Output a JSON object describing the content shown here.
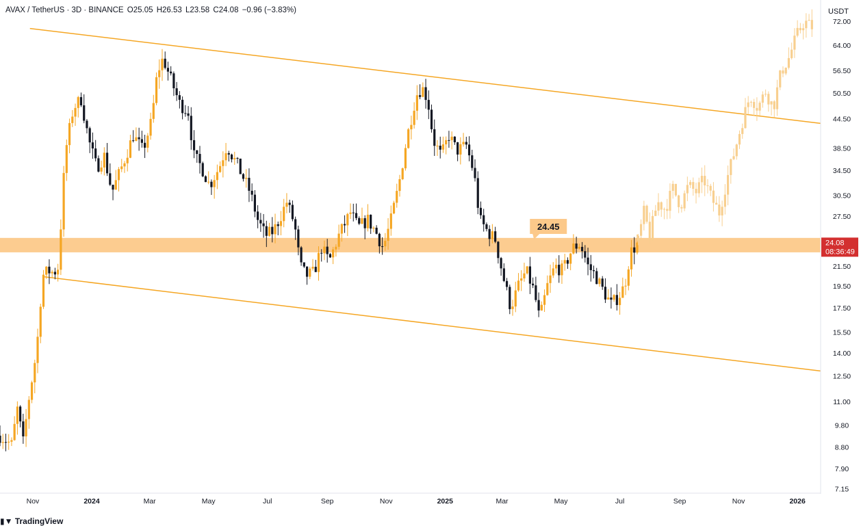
{
  "header": {
    "symbol": "AVAX / TetherUS · 3D · BINANCE",
    "open": "O25.05",
    "high": "H26.53",
    "low": "L23.58",
    "close": "C24.08",
    "change": "−0.96 (−3.83%)"
  },
  "price_axis_unit": "USDT",
  "footer": {
    "brand": "TradingView",
    "logo_icon": "tradingview-logo-icon"
  },
  "colors": {
    "up": "#f5a623",
    "down": "#131722",
    "projection": "#f8cf8f",
    "channel": "#f5a623",
    "zone": "#fcc98a",
    "badge": "#d32f2f"
  },
  "chart_data": {
    "type": "candlestick",
    "title": "",
    "xlabel": "",
    "ylabel": "",
    "y_scale": "log",
    "ylim": [
      7.0,
      80.0
    ],
    "xlim": [
      "2023-09-28",
      "2026-01-25"
    ],
    "y_ticks": [
      "72.00",
      "64.00",
      "56.50",
      "50.50",
      "44.50",
      "38.50",
      "34.50",
      "30.50",
      "27.50",
      "21.50",
      "19.50",
      "17.50",
      "15.50",
      "14.00",
      "12.50",
      "11.00",
      "9.80",
      "8.80",
      "7.90",
      "7.15"
    ],
    "x_ticks": [
      {
        "label": "Nov",
        "date": "2023-11-01",
        "year": false
      },
      {
        "label": "2024",
        "date": "2024-01-01",
        "year": true
      },
      {
        "label": "Mar",
        "date": "2024-03-01",
        "year": false
      },
      {
        "label": "May",
        "date": "2024-05-01",
        "year": false
      },
      {
        "label": "Jul",
        "date": "2024-07-01",
        "year": false
      },
      {
        "label": "Sep",
        "date": "2024-09-01",
        "year": false
      },
      {
        "label": "Nov",
        "date": "2024-11-01",
        "year": false
      },
      {
        "label": "2025",
        "date": "2025-01-01",
        "year": true
      },
      {
        "label": "Mar",
        "date": "2025-03-01",
        "year": false
      },
      {
        "label": "May",
        "date": "2025-05-01",
        "year": false
      },
      {
        "label": "Jul",
        "date": "2025-07-01",
        "year": false
      },
      {
        "label": "Sep",
        "date": "2025-09-01",
        "year": false
      },
      {
        "label": "Nov",
        "date": "2025-11-01",
        "year": false
      },
      {
        "label": "2026",
        "date": "2026-01-01",
        "year": true
      }
    ],
    "price_path": [
      [
        "2023-09-28",
        9.3
      ],
      [
        "2023-10-10",
        8.9
      ],
      [
        "2023-10-16",
        10.6
      ],
      [
        "2023-10-22",
        9.0
      ],
      [
        "2023-10-28",
        11.2
      ],
      [
        "2023-11-05",
        14.2
      ],
      [
        "2023-11-11",
        20.5
      ],
      [
        "2023-11-17",
        21.0
      ],
      [
        "2023-11-23",
        20.8
      ],
      [
        "2023-11-28",
        21.5
      ],
      [
        "2023-12-01",
        29.0
      ],
      [
        "2023-12-05",
        38.0
      ],
      [
        "2023-12-13",
        47.0
      ],
      [
        "2023-12-21",
        49.0
      ],
      [
        "2023-12-29",
        40.0
      ],
      [
        "2024-01-06",
        35.0
      ],
      [
        "2024-01-14",
        37.0
      ],
      [
        "2024-01-22",
        31.0
      ],
      [
        "2024-02-01",
        35.0
      ],
      [
        "2024-02-13",
        41.0
      ],
      [
        "2024-02-23",
        38.0
      ],
      [
        "2024-03-03",
        44.0
      ],
      [
        "2024-03-09",
        56.0
      ],
      [
        "2024-03-15",
        60.0
      ],
      [
        "2024-03-23",
        54.0
      ],
      [
        "2024-04-01",
        48.0
      ],
      [
        "2024-04-10",
        46.0
      ],
      [
        "2024-04-16",
        37.0
      ],
      [
        "2024-04-24",
        35.0
      ],
      [
        "2024-05-02",
        32.0
      ],
      [
        "2024-05-12",
        35.0
      ],
      [
        "2024-05-20",
        39.0
      ],
      [
        "2024-06-01",
        35.0
      ],
      [
        "2024-06-13",
        31.0
      ],
      [
        "2024-06-21",
        27.0
      ],
      [
        "2024-06-29",
        25.0
      ],
      [
        "2024-07-07",
        25.5
      ],
      [
        "2024-07-13",
        27.0
      ],
      [
        "2024-07-21",
        29.5
      ],
      [
        "2024-07-29",
        26.5
      ],
      [
        "2024-08-04",
        21.5
      ],
      [
        "2024-08-10",
        20.5
      ],
      [
        "2024-08-18",
        20.8
      ],
      [
        "2024-08-26",
        23.5
      ],
      [
        "2024-09-03",
        22.0
      ],
      [
        "2024-09-13",
        25.0
      ],
      [
        "2024-09-25",
        28.0
      ],
      [
        "2024-10-03",
        26.0
      ],
      [
        "2024-10-13",
        27.0
      ],
      [
        "2024-10-21",
        25.5
      ],
      [
        "2024-10-29",
        23.5
      ],
      [
        "2024-11-06",
        27.0
      ],
      [
        "2024-11-14",
        32.0
      ],
      [
        "2024-11-22",
        40.0
      ],
      [
        "2024-12-02",
        50.0
      ],
      [
        "2024-12-08",
        52.0
      ],
      [
        "2024-12-14",
        49.0
      ],
      [
        "2024-12-20",
        40.0
      ],
      [
        "2024-12-28",
        37.0
      ],
      [
        "2025-01-05",
        41.0
      ],
      [
        "2025-01-13",
        38.0
      ],
      [
        "2025-01-23",
        39.0
      ],
      [
        "2025-01-31",
        34.0
      ],
      [
        "2025-02-06",
        27.0
      ],
      [
        "2025-02-14",
        25.5
      ],
      [
        "2025-02-22",
        24.5
      ],
      [
        "2025-03-02",
        20.5
      ],
      [
        "2025-03-10",
        17.5
      ],
      [
        "2025-03-18",
        19.5
      ],
      [
        "2025-03-26",
        21.0
      ],
      [
        "2025-04-03",
        19.0
      ],
      [
        "2025-04-09",
        16.5
      ],
      [
        "2025-04-17",
        19.5
      ],
      [
        "2025-04-25",
        21.5
      ],
      [
        "2025-05-03",
        21.0
      ],
      [
        "2025-05-13",
        23.5
      ],
      [
        "2025-05-21",
        24.0
      ],
      [
        "2025-05-29",
        21.5
      ],
      [
        "2025-06-06",
        20.5
      ],
      [
        "2025-06-14",
        19.0
      ],
      [
        "2025-06-22",
        17.8
      ],
      [
        "2025-06-30",
        18.5
      ],
      [
        "2025-07-06",
        19.5
      ],
      [
        "2025-07-12",
        23.0
      ],
      [
        "2025-07-20",
        24.08
      ]
    ],
    "projection_path": [
      [
        "2025-07-20",
        24.3
      ],
      [
        "2025-07-26",
        28.0
      ],
      [
        "2025-08-01",
        25.0
      ],
      [
        "2025-08-09",
        29.5
      ],
      [
        "2025-08-17",
        28.5
      ],
      [
        "2025-08-25",
        31.5
      ],
      [
        "2025-09-02",
        29.0
      ],
      [
        "2025-09-10",
        32.0
      ],
      [
        "2025-09-18",
        31.0
      ],
      [
        "2025-09-26",
        33.0
      ],
      [
        "2025-10-04",
        30.0
      ],
      [
        "2025-10-12",
        28.0
      ],
      [
        "2025-10-20",
        33.0
      ],
      [
        "2025-10-28",
        38.0
      ],
      [
        "2025-11-05",
        44.0
      ],
      [
        "2025-11-13",
        50.0
      ],
      [
        "2025-11-21",
        47.0
      ],
      [
        "2025-11-29",
        51.0
      ],
      [
        "2025-12-07",
        47.0
      ],
      [
        "2025-12-15",
        56.0
      ],
      [
        "2025-12-23",
        60.0
      ],
      [
        "2025-12-31",
        67.0
      ],
      [
        "2026-01-08",
        72.0
      ],
      [
        "2026-01-16",
        70.0
      ]
    ],
    "channel_upper": {
      "start": [
        "2023-10-29",
        69.5
      ],
      "end": [
        "2026-01-25",
        43.5
      ]
    },
    "channel_lower": {
      "start": [
        "2023-11-11",
        20.4
      ],
      "end": [
        "2026-01-25",
        12.8
      ]
    },
    "support_zone": [
      23.0,
      24.7
    ],
    "annotation": {
      "text": "24.45",
      "date": "2025-04-01",
      "value": 24.45
    },
    "last_price": {
      "value": "24.08",
      "countdown": "08:36:49"
    }
  }
}
